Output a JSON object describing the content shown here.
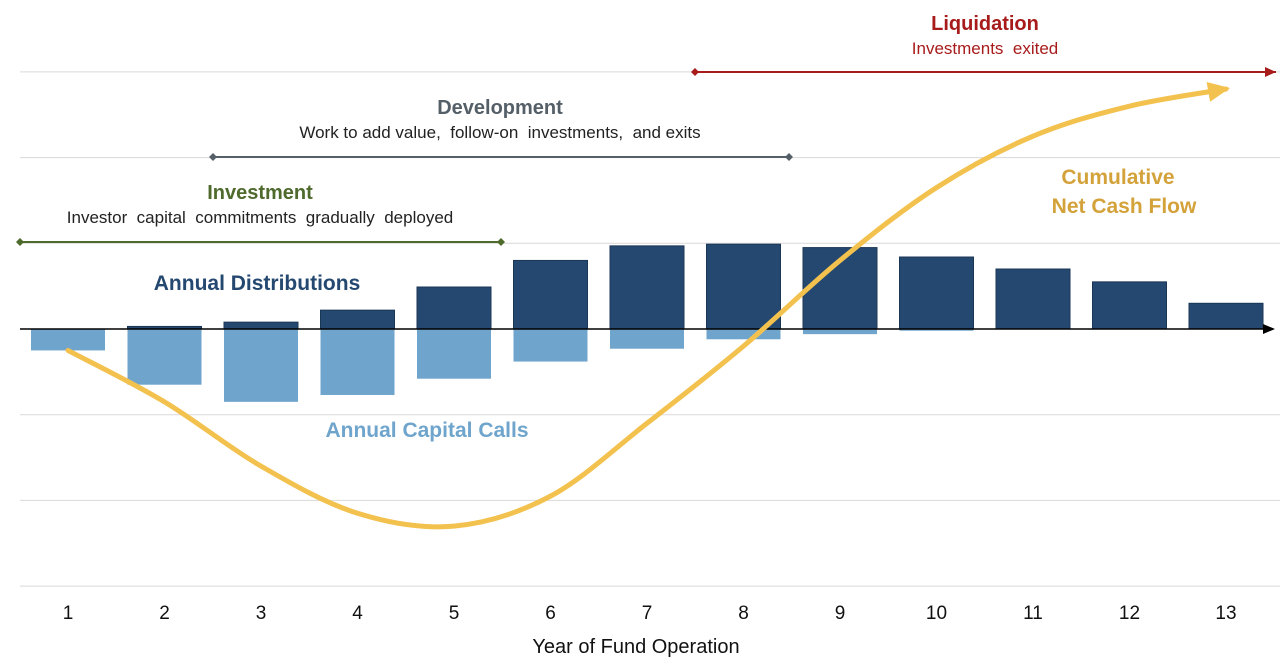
{
  "chart_data": {
    "type": "bar",
    "title": "",
    "xlabel": "Year of Fund Operation",
    "ylabel": "",
    "categories": [
      "1",
      "2",
      "3",
      "4",
      "5",
      "6",
      "7",
      "8",
      "9",
      "10",
      "11",
      "12",
      "13"
    ],
    "ylim": [
      -3,
      3.5
    ],
    "grid": true,
    "series": [
      {
        "name": "Annual Distributions",
        "color": "#254870",
        "values": [
          0,
          0.03,
          0.08,
          0.22,
          0.49,
          0.8,
          0.97,
          0.99,
          0.95,
          0.84,
          0.7,
          0.55,
          0.3
        ]
      },
      {
        "name": "Annual Capital Calls",
        "color": "#6fa5cc",
        "values": [
          -0.25,
          -0.65,
          -0.85,
          -0.77,
          -0.58,
          -0.38,
          -0.23,
          -0.12,
          -0.06,
          -0.02,
          0,
          0,
          0
        ]
      },
      {
        "name": "Cumulative Net Cash Flow",
        "color": "#f2c14e",
        "type": "line",
        "values": [
          -0.25,
          -0.85,
          -1.6,
          -2.15,
          -2.3,
          -1.95,
          -1.1,
          -0.2,
          0.8,
          1.65,
          2.25,
          2.6,
          2.8
        ]
      }
    ],
    "series_labels": {
      "distributions": "Annual Distributions",
      "capital_calls": "Annual Capital Calls",
      "cumulative_line1": "Cumulative",
      "cumulative_line2": "Net Cash Flow"
    },
    "phases": [
      {
        "name": "Investment",
        "subtitle": "Investor  capital  commitments  gradually  deployed",
        "start_year": 0.5,
        "end_year": 5.5,
        "color": "#4e6a2d"
      },
      {
        "name": "Development",
        "subtitle": "Work to add value,  follow-on  investments,  and exits",
        "start_year": 2.5,
        "end_year": 8.5,
        "color": "#555f68"
      },
      {
        "name": "Liquidation",
        "subtitle": "Investments  exited",
        "start_year": 7.5,
        "end_year": 13.5,
        "color": "#a81b1b"
      }
    ]
  }
}
